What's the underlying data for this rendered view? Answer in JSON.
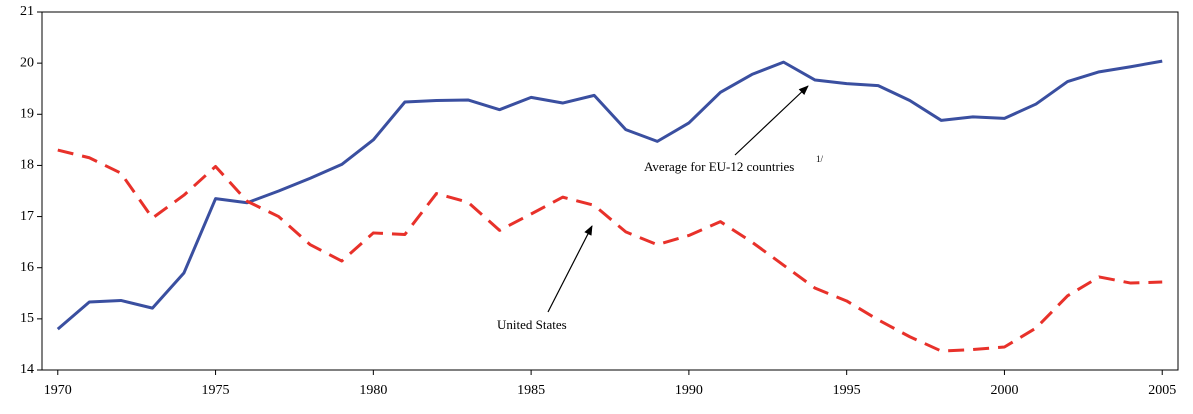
{
  "chart_data": {
    "type": "line",
    "x": [
      1970,
      1971,
      1972,
      1973,
      1974,
      1975,
      1976,
      1977,
      1978,
      1979,
      1980,
      1981,
      1982,
      1983,
      1984,
      1985,
      1986,
      1987,
      1988,
      1989,
      1990,
      1991,
      1992,
      1993,
      1994,
      1995,
      1996,
      1997,
      1998,
      1999,
      2000,
      2001,
      2002,
      2003,
      2004,
      2005
    ],
    "series": [
      {
        "color": "#3a4fa0",
        "dash": false,
        "values": [
          14.8,
          15.33,
          15.36,
          15.21,
          15.9,
          17.35,
          17.27,
          17.5,
          17.75,
          18.02,
          18.5,
          19.24,
          19.27,
          19.28,
          19.09,
          19.33,
          19.22,
          19.37,
          18.7,
          18.47,
          18.83,
          19.43,
          19.78,
          20.02,
          19.67,
          19.6,
          19.56,
          19.27,
          18.88,
          18.95,
          18.92,
          19.2,
          19.64,
          19.83,
          19.93,
          20.04
        ]
      },
      {
        "color": "#e8312a",
        "dash": true,
        "values": [
          18.3,
          18.15,
          17.85,
          16.97,
          17.42,
          17.98,
          17.3,
          17.0,
          16.45,
          16.13,
          16.68,
          16.65,
          17.45,
          17.28,
          16.73,
          17.05,
          17.38,
          17.22,
          16.7,
          16.45,
          16.63,
          16.9,
          16.5,
          16.05,
          15.6,
          15.35,
          14.98,
          14.65,
          14.37,
          14.4,
          14.45,
          14.82,
          15.45,
          15.82,
          15.7,
          15.72
        ]
      }
    ],
    "annotations": [
      {
        "text": "Average for EU-12 countries",
        "superscript": "1/"
      },
      {
        "text": "United States"
      }
    ],
    "xlim": [
      1969.5,
      2005.5
    ],
    "xticks": [
      1970,
      1975,
      1980,
      1985,
      1990,
      1995,
      2000,
      2005
    ],
    "ylim": [
      14,
      21
    ],
    "yticks": [
      14,
      15,
      16,
      17,
      18,
      19,
      20,
      21
    ],
    "grid": false
  }
}
